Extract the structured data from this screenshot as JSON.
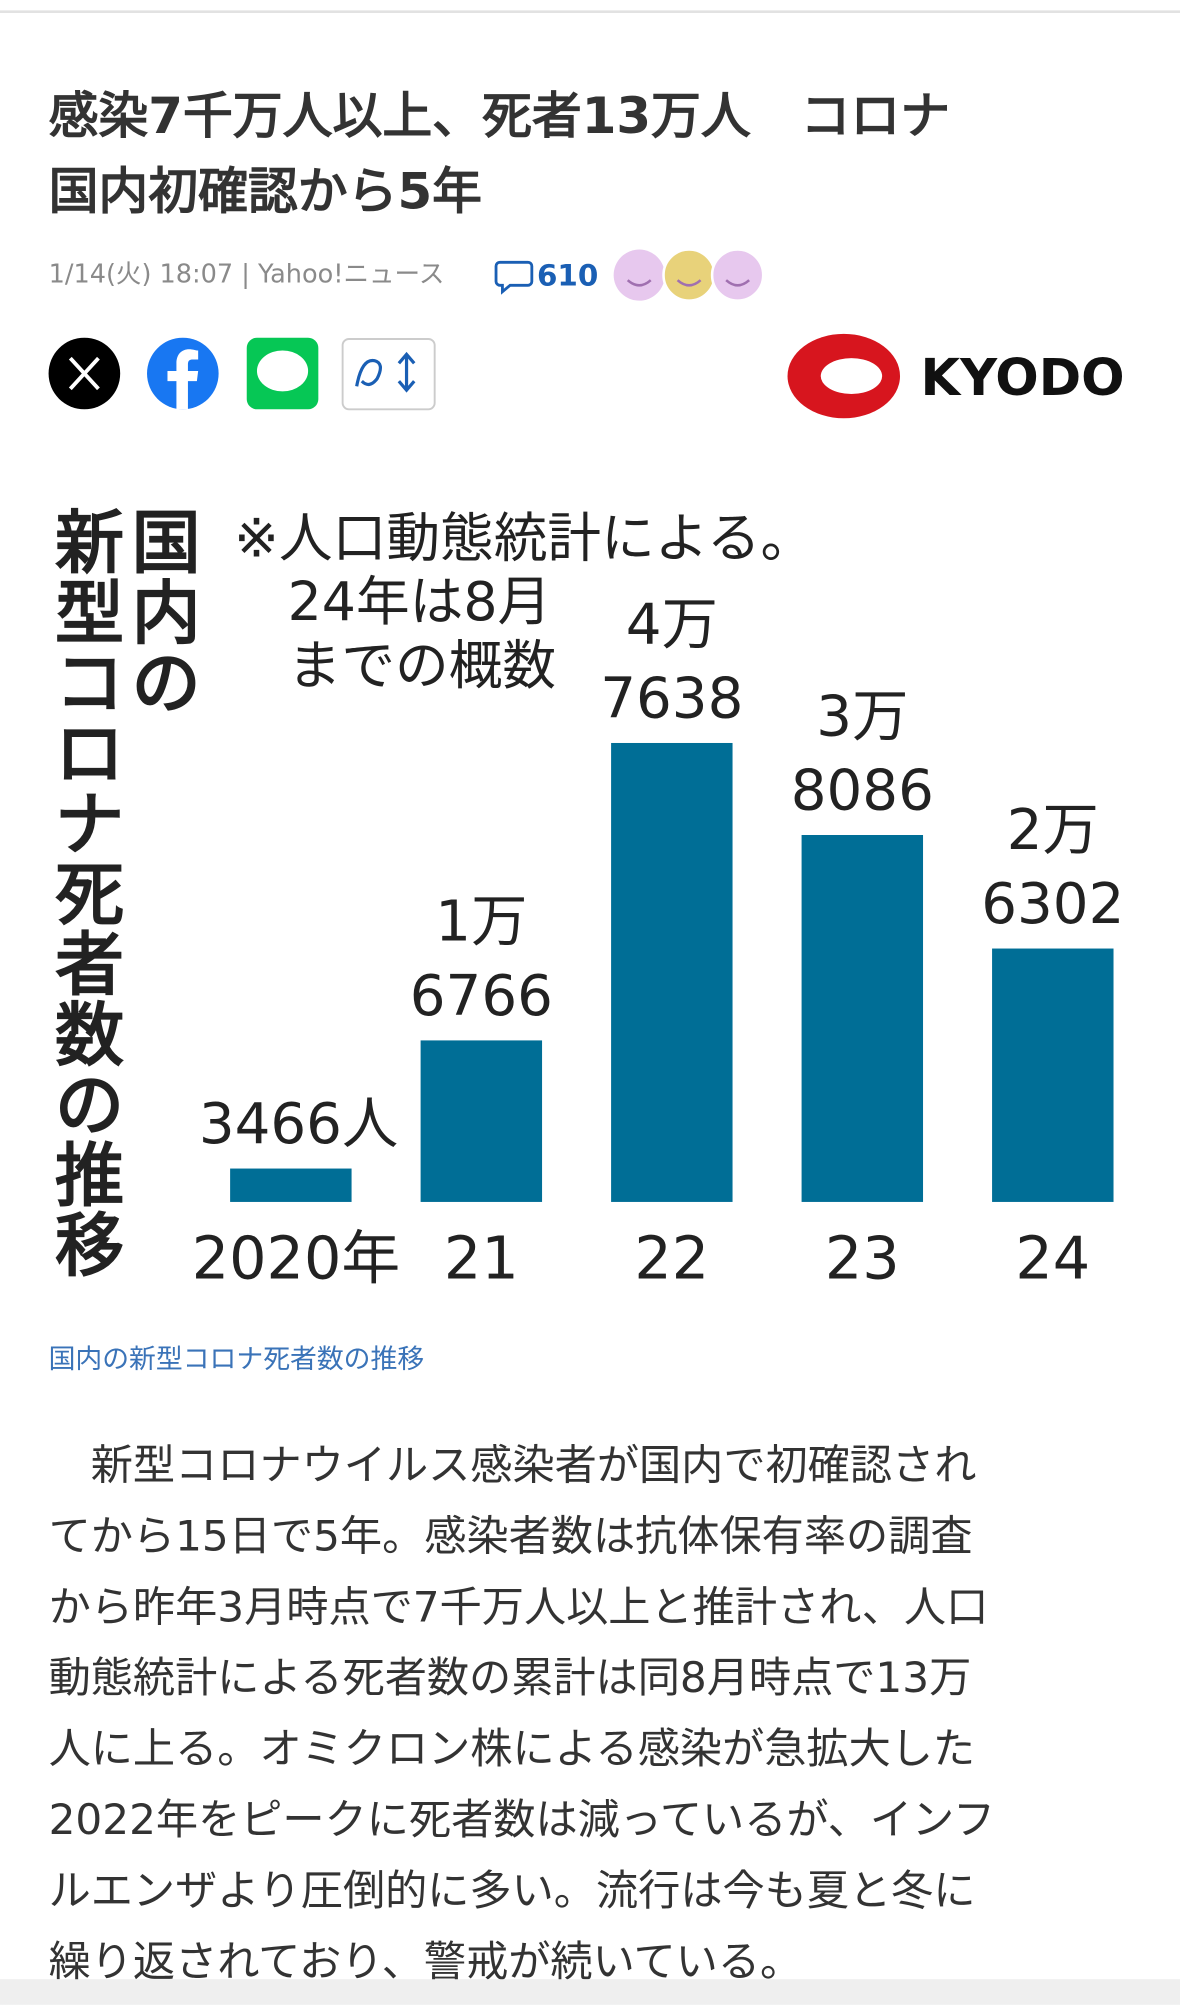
{
  "header": {
    "title_lines": [
      "感染7千万人以上、死者13万人　コロナ",
      "国内初確認から5年"
    ],
    "meta": "1/14(火) 18:07 | Yahoo!ニュース",
    "comment_count": "610",
    "source_logo": "KYODO"
  },
  "chart_data": {
    "type": "bar",
    "title_columns": [
      "国内の",
      "新型コロナ死者数の推移"
    ],
    "note_lines": [
      "※人口動態統計による。",
      "24年は8月",
      "までの概数"
    ],
    "categories": [
      "2020年",
      "21",
      "22",
      "23",
      "24"
    ],
    "values": [
      3466,
      16766,
      47638,
      38086,
      26302
    ],
    "value_labels": [
      [
        "3466人"
      ],
      [
        "1万",
        "6766"
      ],
      [
        "4万",
        "7638"
      ],
      [
        "3万",
        "8086"
      ],
      [
        "2万",
        "6302"
      ]
    ],
    "color": "#006e96"
  },
  "caption": "国内の新型コロナ死者数の推移",
  "body_lines": [
    "　新型コロナウイルス感染者が国内で初確認され",
    "てから15日で5年。感染者数は抗体保有率の調査",
    "から昨年3月時点で7千万人以上と推計され、人口",
    "動態統計による死者数の累計は同8月時点で13万",
    "人に上る。オミクロン株による感染が急拡大した",
    "2022年をピークに死者数は減っているが、インフ",
    "ルエンザより圧倒的に多い。流行は今も夏と冬に",
    "繰り返されており、警戒が続いている。"
  ]
}
